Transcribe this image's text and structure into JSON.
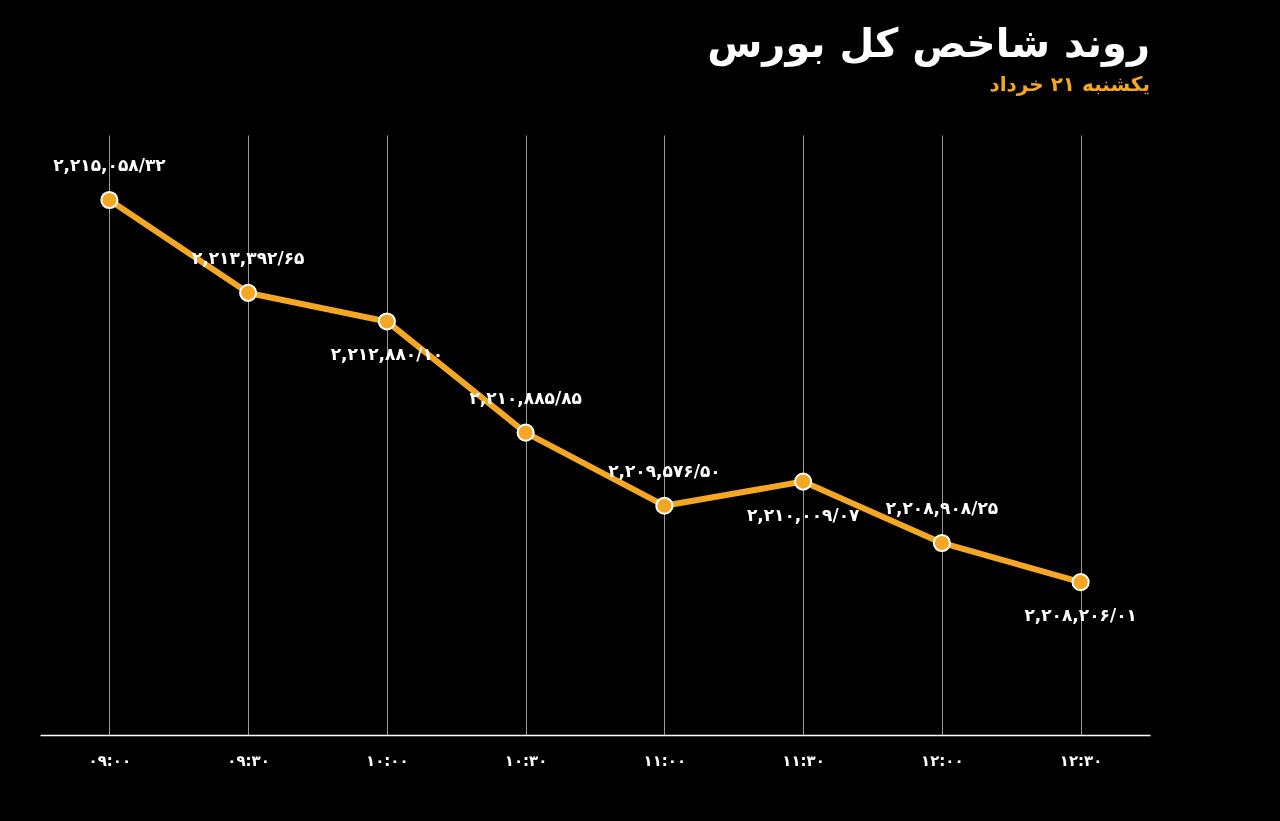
{
  "chart_data": {
    "type": "line",
    "title": "روند شاخص کل بورس",
    "subtitle": "یکشنبه ۲۱ خرداد",
    "categories": [
      "۰۹:۰۰",
      "۰۹:۳۰",
      "۱۰:۰۰",
      "۱۰:۳۰",
      "۱۱:۰۰",
      "۱۱:۳۰",
      "۱۲:۰۰",
      "۱۲:۳۰"
    ],
    "values": [
      2215058.32,
      2213392.65,
      2212880.1,
      2210885.85,
      2209576.5,
      2210009.07,
      2208908.25,
      2208206.01
    ],
    "value_labels": [
      "۲,۲۱۵,۰۵۸/۳۲",
      "۲,۲۱۳,۳۹۲/۶۵",
      "۲,۲۱۲,۸۸۰/۱۰",
      "۲,۲۱۰,۸۸۵/۸۵",
      "۲,۲۰۹,۵۷۶/۵۰",
      "۲,۲۱۰,۰۰۹/۰۷",
      "۲,۲۰۸,۹۰۸/۲۵",
      "۲,۲۰۸,۲۰۶/۰۱"
    ],
    "color": "#f5a623",
    "marker": "circle",
    "grid": "x"
  }
}
